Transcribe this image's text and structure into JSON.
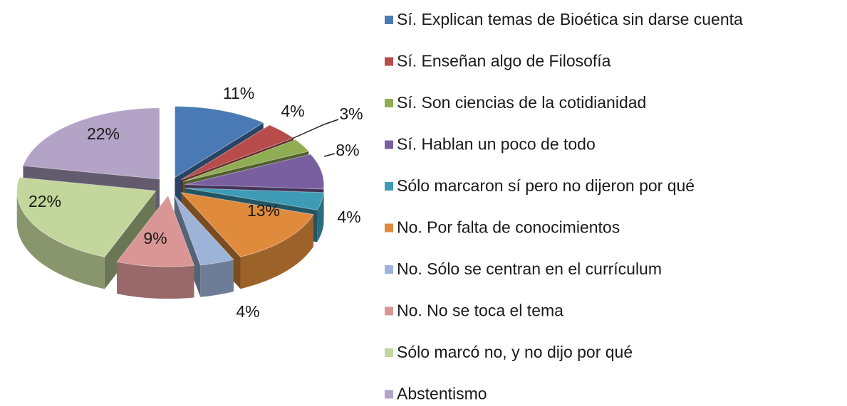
{
  "chart_data": {
    "type": "pie",
    "categories": [
      "Sí. Explican temas de Bioética sin darse cuenta",
      "Sí. Enseñan algo de Filosofía",
      "Sí. Son ciencias de la cotidianidad",
      "Sí. Hablan un poco de todo",
      "Sólo marcaron sí pero no dijeron por qué",
      "No. Por falta de conocimientos",
      "No. Sólo se centran en el currículum",
      "No. No se toca el tema",
      "Sólo marcó no, y no dijo por qué",
      "Abstentismo"
    ],
    "values": [
      11,
      4,
      3,
      8,
      4,
      13,
      4,
      9,
      22,
      22
    ],
    "value_labels": [
      "11%",
      "4%",
      "3%",
      "8%",
      "4%",
      "13%",
      "4%",
      "9%",
      "22%",
      "22%"
    ],
    "colors": [
      "#4a7ab5",
      "#b84c4a",
      "#8fad52",
      "#7a5fa0",
      "#3d9bb5",
      "#e08a3c",
      "#9db3d8",
      "#d99694",
      "#c3d69b",
      "#b3a3c7"
    ],
    "legend": "right"
  }
}
